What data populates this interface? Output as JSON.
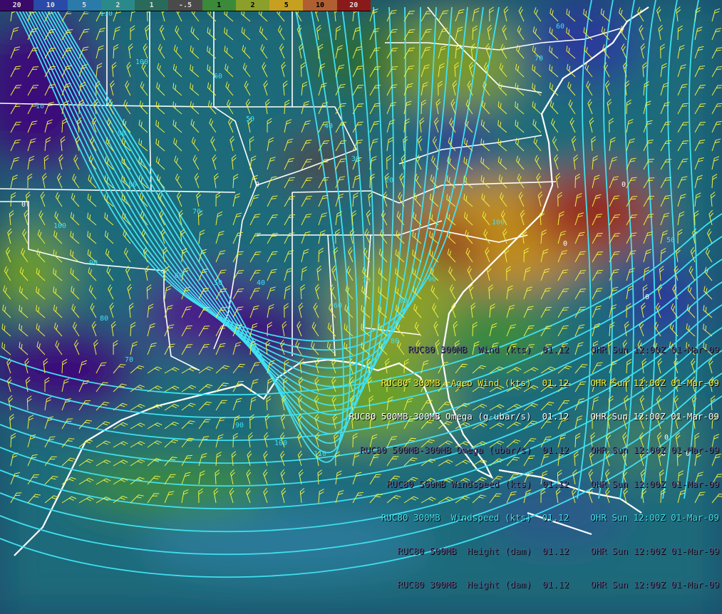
{
  "colorbar": {
    "labels": [
      "20",
      "10",
      "5",
      "2",
      "1",
      "-.5",
      "1",
      "2",
      "5",
      "10",
      "20"
    ],
    "colors": [
      "#3a0a6a",
      "#2a4aaa",
      "#2a7aaa",
      "#2a8a8a",
      "#2a6a5a",
      "#4a4a4a",
      "#3a8a3a",
      "#8aa02a",
      "#c8a020",
      "#b06030",
      "#8a1a1a"
    ]
  },
  "contour_labels": {
    "isotach": [
      "110",
      "100",
      "90",
      "80",
      "70",
      "60",
      "50",
      "40",
      "30",
      "20",
      "10",
      "100",
      "90",
      "80",
      "70",
      "60",
      "50",
      "40",
      "60",
      "70",
      "80",
      "90",
      "100",
      "110",
      "80",
      "90",
      "100",
      "70",
      "60",
      "50"
    ],
    "omega": [
      "0",
      "0",
      "0",
      "0",
      "0",
      "0",
      "0",
      "0"
    ]
  },
  "legend": [
    {
      "text": "RUC80 300MB  Wind (kts)  01.12    OHR Sun 12:00Z 01-Mar-09",
      "color": "#5a5a8a"
    },
    {
      "text": "RUC80 300MB  Ageo Wind (kts)  01.12    OHR Sun 12:00Z 01-Mar-09",
      "color": "#f0f040"
    },
    {
      "text": "RUC80 500MB-300MB Omega (g-ubar/s)  01.12    OHR Sun 12:00Z 01-Mar-09",
      "color": "#ffffff"
    },
    {
      "text": "RUC80 500MB-300MB Omega (ubar/s)  01.12    OHR Sun 12:00Z 01-Mar-09",
      "color": "#5a5a8a"
    },
    {
      "text": "RUC80 500MB Windspeed (kts)  01.12    OHR Sun 12:00Z 01-Mar-09",
      "color": "#5a5a8a"
    },
    {
      "text": "RUC80 300MB  Windspeed (kts)  01.12    OHR Sun 12:00Z 01-Mar-09",
      "color": "#40e0f0"
    },
    {
      "text": "RUC80 500MB  Height (dam)  01.12    OHR Sun 12:00Z 01-Mar-09",
      "color": "#5a5a8a"
    },
    {
      "text": "RUC80 300MB  Height (dam)  01.12    OHR Sun 12:00Z 01-Mar-09",
      "color": "#5a5a8a"
    }
  ],
  "colors": {
    "isotach": "#40e0f0",
    "barbs": "#f0f040",
    "borders": "#ffffff"
  }
}
